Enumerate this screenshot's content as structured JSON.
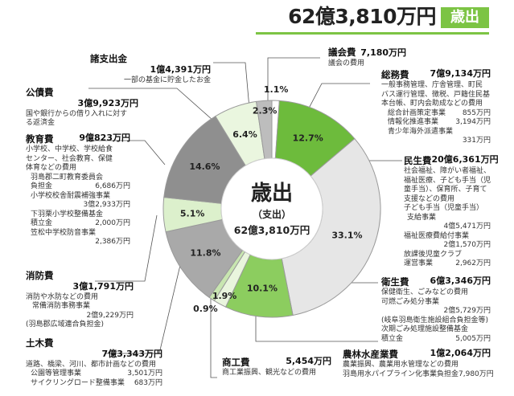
{
  "header": {
    "total": "62億3,810万円",
    "badge": "歳出"
  },
  "center": {
    "title": "歳出",
    "subtitle": "（支出）",
    "total": "62億3,810万円"
  },
  "chart_data": {
    "type": "pie",
    "title": "歳出",
    "slices": [
      {
        "name": "議会費",
        "pct": 1.1,
        "label": "1.1%",
        "color": "#ffffff"
      },
      {
        "name": "総務費",
        "pct": 12.7,
        "label": "12.7%",
        "color": "#6dbb3c"
      },
      {
        "name": "民生費",
        "pct": 33.1,
        "label": "33.1%",
        "color": "#e6e6e6"
      },
      {
        "name": "衛生費",
        "pct": 10.1,
        "label": "10.1%",
        "color": "#8ccd5f"
      },
      {
        "name": "農林水産業費",
        "pct": 1.9,
        "label": "1.9%",
        "color": "#e9f5dd"
      },
      {
        "name": "商工費",
        "pct": 0.9,
        "label": "0.9%",
        "color": "#c8e6b0"
      },
      {
        "name": "土木費",
        "pct": 11.8,
        "label": "11.8%",
        "color": "#a9a9a9"
      },
      {
        "name": "消防費",
        "pct": 5.1,
        "label": "5.1%",
        "color": "#dcf0cc"
      },
      {
        "name": "教育費",
        "pct": 14.6,
        "label": "14.6%",
        "color": "#8f8f8f"
      },
      {
        "name": "公債費",
        "pct": 6.4,
        "label": "6.4%",
        "color": "#eaf6df"
      },
      {
        "name": "諸支出金",
        "pct": 2.3,
        "label": "2.3%",
        "color": "#bdbdbd"
      }
    ]
  },
  "labels": {
    "gikai": {
      "title": "議会費",
      "amount": "7,180万円",
      "desc": "議会の費用"
    },
    "somu": {
      "title": "総務費",
      "amount": "7億9,134万円",
      "desc": [
        "一般事務管理、庁舎管理、町民",
        "バス運行管理、徴税、戸籍住民基",
        "本台帳、町内会助成などの費用"
      ],
      "items": [
        {
          "name": "総合計画策定事業",
          "value": "855万円"
        },
        {
          "name": "情報化推進事業",
          "value": "3,194万円"
        }
      ],
      "extra": [
        "青少年海外派遣事業",
        "331万円"
      ]
    },
    "minsei": {
      "title": "民生費",
      "amount": "20億6,361万円",
      "desc": [
        "社会福祉、障がい者福祉、",
        "福祉医療、子ども手当（児",
        "童手当）、保育所、子育て",
        "支援などの費用"
      ],
      "items": [
        [
          "子ども手当（児童手当）",
          "支給事業"
        ],
        "4億5,471万円",
        [
          "福祉医療費給付事業"
        ],
        "2億1,570万円",
        [
          "放課後児童クラブ"
        ],
        {
          "name": "運営事業",
          "value": "2,962万円"
        }
      ]
    },
    "eisei": {
      "title": "衛生費",
      "amount": "6億3,346万円",
      "desc": [
        "保健衛生、ごみなどの費用",
        "可燃ごみ処分事業"
      ],
      "v1": "2億5,729万円",
      "sub": [
        "(岐阜羽島衛生施設組合負担金等)",
        "次期ごみ処理施設整備基金"
      ],
      "item": {
        "name": "積立金",
        "value": "5,005万円"
      }
    },
    "norin": {
      "title": "農林水産業費",
      "amount": "1億2,064万円",
      "desc": "農業振興、農業用水管理などの費用",
      "item": {
        "name": "羽島用水パイプライン化事業負担金",
        "value": "7,980万円"
      }
    },
    "shoko": {
      "title": "商工費",
      "amount": "5,454万円",
      "desc": "商工業振興、観光などの費用"
    },
    "doboku": {
      "title": "土木費",
      "amount": "7億3,343万円",
      "desc": "道路、橋梁、河川、都市計画などの費用",
      "items": [
        {
          "name": "公園等管理事業",
          "value": "3,501万円"
        },
        {
          "name": "サイクリングロード整備事業",
          "value": "683万円"
        }
      ]
    },
    "shobo": {
      "title": "消防費",
      "amount": "3億1,791万円",
      "desc": [
        "消防や水防などの費用",
        "常備消防事務事業"
      ],
      "v1": "2億9,229万円",
      "sub": "(羽島郡広域連合負担金)"
    },
    "kyoiku": {
      "title": "教育費",
      "amount": "9億823万円",
      "desc": [
        "小学校、中学校、学校給食",
        "センター、社会教育、保健",
        "体育などの費用"
      ],
      "rows": [
        [
          "羽島郡二町教育委員会"
        ],
        {
          "name": "負担金",
          "value": "6,686万円"
        },
        [
          "小学校校舎耐震補強事業"
        ],
        [
          "",
          "3億2,933万円"
        ],
        [
          "下羽栗小学校整備基金"
        ],
        {
          "name": "積立金",
          "value": "2,000万円"
        },
        [
          "笠松中学校防音事業"
        ],
        [
          "",
          "2,386万円"
        ]
      ]
    },
    "kosai": {
      "title": "公債費",
      "amount": "3億9,923万円",
      "desc": [
        "国や銀行からの借り入れに対す",
        "る返済金"
      ]
    },
    "shoshishutsu": {
      "title": "諸支出金",
      "amount": "1億4,391万円",
      "desc": "一部の基金に貯金したお金"
    }
  }
}
